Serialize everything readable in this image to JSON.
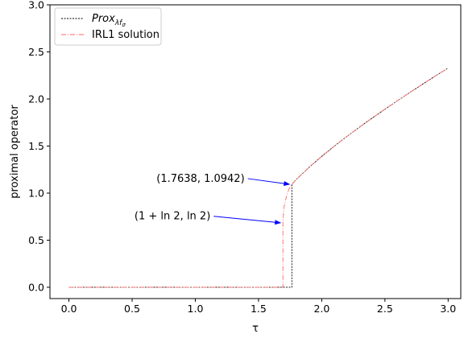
{
  "chart_data": {
    "type": "line",
    "title": "",
    "xlabel": "τ",
    "ylabel": "proximal operator",
    "xlim": [
      -0.15,
      3.1
    ],
    "ylim": [
      -0.12,
      3.0
    ],
    "xticks": [
      0.0,
      0.5,
      1.0,
      1.5,
      2.0,
      2.5,
      3.0
    ],
    "xtick_labels": [
      "0.0",
      "0.5",
      "1.0",
      "1.5",
      "2.0",
      "2.5",
      "3.0"
    ],
    "yticks": [
      0.0,
      0.5,
      1.0,
      1.5,
      2.0,
      2.5,
      3.0
    ],
    "ytick_labels": [
      "0.0",
      "0.5",
      "1.0",
      "1.5",
      "2.0",
      "2.5",
      "3.0"
    ],
    "grid": false,
    "legend": {
      "position": "top-left",
      "entries": [
        {
          "name": "Prox",
          "sub": "λf",
          "subsub": "σ",
          "color": "#000000",
          "style": "dotted"
        },
        {
          "name": "IRL1 solution",
          "color": "#ff6666",
          "style": "dashdot"
        }
      ]
    },
    "series": [
      {
        "name": "Prox_λfσ",
        "color": "#000000",
        "style": "dotted",
        "x": [
          0.0,
          0.5,
          1.0,
          1.5,
          1.7638,
          1.7638,
          1.8,
          1.9,
          2.0,
          2.1,
          2.2,
          2.3,
          2.4,
          2.5,
          2.6,
          2.7,
          2.8,
          2.9,
          3.0
        ],
        "y": [
          0.0,
          0.0,
          0.0,
          0.0,
          0.0,
          1.0942,
          1.1468,
          1.2741,
          1.3904,
          1.4993,
          1.6028,
          1.7022,
          1.7983,
          1.8916,
          1.9826,
          2.0716,
          2.1589,
          2.2446,
          2.329
        ]
      },
      {
        "name": "IRL1 solution",
        "color": "#ff6666",
        "style": "dashdot",
        "x": [
          0.0,
          0.5,
          1.0,
          1.5,
          1.6931,
          1.6931,
          1.7,
          1.72,
          1.74,
          1.7638,
          1.8,
          1.9,
          2.0,
          2.1,
          2.2,
          2.3,
          2.4,
          2.5,
          2.6,
          2.7,
          2.8,
          2.9,
          3.0
        ],
        "y": [
          0.0,
          0.0,
          0.0,
          0.0,
          0.0,
          0.6931,
          0.84,
          0.96,
          1.04,
          1.0942,
          1.1468,
          1.2741,
          1.3904,
          1.4993,
          1.6028,
          1.7022,
          1.7983,
          1.8916,
          1.9826,
          2.0716,
          2.1589,
          2.2446,
          2.329
        ]
      }
    ],
    "annotations": [
      {
        "text": "(1.7638, 1.0942)",
        "x": 1.7638,
        "y": 1.0942,
        "text_x": 1.39,
        "text_y": 1.12,
        "arrow_color": "#0000ff"
      },
      {
        "text": "(1 + ln 2, ln 2)",
        "x": 1.6931,
        "y": 0.6931,
        "text_x": 1.12,
        "text_y": 0.72,
        "arrow_color": "#0000ff"
      }
    ]
  }
}
